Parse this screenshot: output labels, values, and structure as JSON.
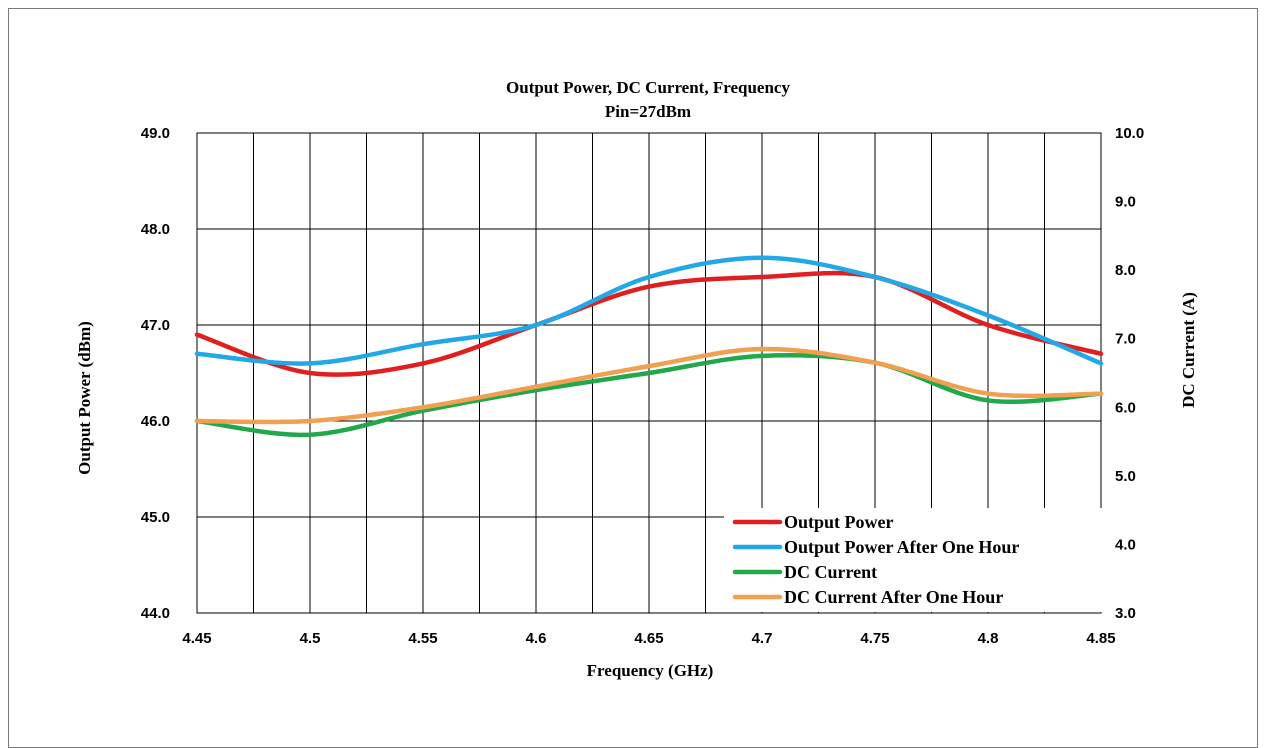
{
  "chart_data": {
    "type": "line",
    "title": "Output Power, DC  Current,  Frequency",
    "subtitle": "Pin=27dBm",
    "xlabel": "Frequency (GHz)",
    "ylabel_left": "Output Power (dBm)",
    "ylabel_right": "DC Current (A)",
    "x_ticks": [
      "4.45",
      "4.5",
      "4.55",
      "4.6",
      "4.65",
      "4.7",
      "4.75",
      "4.8",
      "4.85"
    ],
    "xlim": [
      4.45,
      4.85
    ],
    "ylim_left": [
      44.0,
      49.0
    ],
    "ylim_right": [
      3.0,
      10.0
    ],
    "y_ticks_left": [
      "44.0",
      "45.0",
      "46.0",
      "47.0",
      "48.0",
      "49.0"
    ],
    "y_ticks_right": [
      "3.0",
      "4.0",
      "5.0",
      "6.0",
      "7.0",
      "8.0",
      "9.0",
      "10.0"
    ],
    "grid": true,
    "legend_position": "bottom-right",
    "x": [
      4.45,
      4.5,
      4.55,
      4.6,
      4.65,
      4.7,
      4.75,
      4.8,
      4.85
    ],
    "series": [
      {
        "name": "Output Power",
        "axis": "left",
        "color": "#e02020",
        "values": [
          46.9,
          46.5,
          46.6,
          47.0,
          47.4,
          47.5,
          47.5,
          47.0,
          46.7
        ]
      },
      {
        "name": "Output Power After One Hour",
        "axis": "left",
        "color": "#22a8e6",
        "values": [
          46.7,
          46.6,
          46.8,
          47.0,
          47.5,
          47.7,
          47.5,
          47.1,
          46.6
        ]
      },
      {
        "name": "DC Current",
        "axis": "right",
        "color": "#22a84a",
        "values": [
          5.8,
          5.6,
          5.95,
          6.25,
          6.5,
          6.75,
          6.65,
          6.1,
          6.2
        ]
      },
      {
        "name": "DC Current After One Hour",
        "axis": "right",
        "color": "#f0a050",
        "values": [
          5.8,
          5.8,
          6.0,
          6.3,
          6.6,
          6.85,
          6.65,
          6.2,
          6.2
        ]
      }
    ]
  }
}
